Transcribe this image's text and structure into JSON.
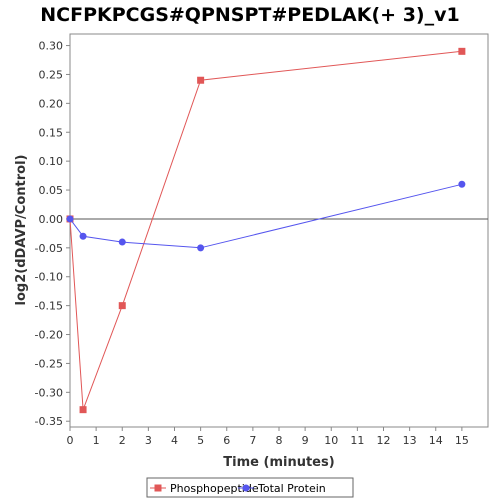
{
  "chart_data": {
    "type": "line",
    "title": "NCFPKPCGS#QPNSPT#PEDLAK(+ 3)_v1",
    "xlabel": "Time (minutes)",
    "ylabel": "log2(dDAVP/Control)",
    "xlim": [
      0,
      16
    ],
    "ylim": [
      -0.36,
      0.32
    ],
    "x_ticks": [
      0,
      1,
      2,
      3,
      4,
      5,
      6,
      7,
      8,
      9,
      10,
      11,
      12,
      13,
      14,
      15
    ],
    "y_ticks": [
      -0.35,
      -0.3,
      -0.25,
      -0.2,
      -0.15,
      -0.1,
      -0.05,
      0.0,
      0.05,
      0.1,
      0.15,
      0.2,
      0.25,
      0.3
    ],
    "zero_line": true,
    "grid": false,
    "legend_position": "bottom",
    "series": [
      {
        "name": "Phosphopeptide",
        "color": "#e15757",
        "marker": "square",
        "x": [
          0,
          0.5,
          2,
          5,
          15
        ],
        "y": [
          0.0,
          -0.33,
          -0.15,
          0.24,
          0.29
        ]
      },
      {
        "name": "Total Protein",
        "color": "#5555ee",
        "marker": "circle",
        "x": [
          0,
          0.5,
          2,
          5,
          15
        ],
        "y": [
          0.0,
          -0.03,
          -0.04,
          -0.05,
          0.06
        ]
      }
    ]
  }
}
